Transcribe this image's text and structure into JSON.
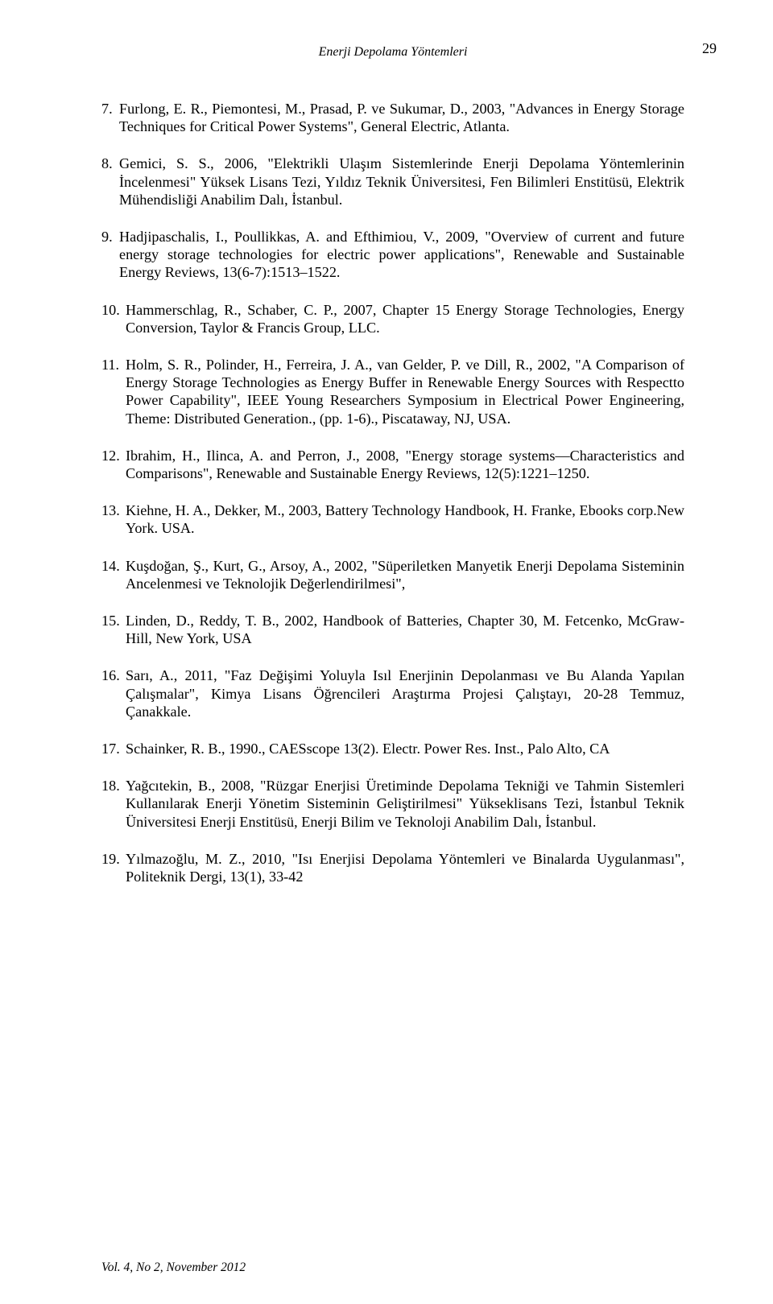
{
  "header": {
    "title": "Enerji Depolama Yöntemleri",
    "pageNumber": "29"
  },
  "refs": [
    {
      "num": "7.",
      "text": "Furlong, E. R., Piemontesi, M., Prasad, P. ve Sukumar, D., 2003, \"Advances in Energy Storage Techniques for Critical Power Systems\", General Electric, Atlanta."
    },
    {
      "num": "8.",
      "text": "Gemici, S. S., 2006, \"Elektrikli Ulaşım Sistemlerinde Enerji Depolama Yöntemlerinin İncelenmesi\" Yüksek Lisans Tezi, Yıldız Teknik Üniversitesi, Fen Bilimleri Enstitüsü, Elektrik Mühendisliği Anabilim Dalı, İstanbul."
    },
    {
      "num": "9.",
      "text": "Hadjipaschalis, I., Poullikkas, A. and Efthimiou, V., 2009, \"Overview of current and future energy storage technologies for electric power applications\", Renewable and Sustainable Energy Reviews, 13(6-7):1513–1522."
    },
    {
      "num": "10.",
      "text": "Hammerschlag, R., Schaber, C. P., 2007, Chapter 15 Energy Storage Technologies, Energy Conversion, Taylor & Francis Group, LLC."
    },
    {
      "num": "11.",
      "text": "Holm, S. R., Polinder, H., Ferreira, J. A., van Gelder, P. ve Dill, R., 2002, \"A Comparison of Energy Storage Technologies as Energy Buffer in Renewable Energy Sources with Respectto Power Capability\", IEEE Young Researchers Symposium in Electrical Power Engineering, Theme: Distributed Generation., (pp. 1-6).,  Piscataway, NJ, USA."
    },
    {
      "num": "12.",
      "text": "Ibrahim, H., Ilinca, A. and Perron, J., 2008, \"Energy storage systems—Characteristics and Comparisons\", Renewable and Sustainable Energy Reviews, 12(5):1221–1250."
    },
    {
      "num": "13.",
      "text": "Kiehne, H. A., Dekker, M., 2003, Battery Technology Handbook, H. Franke, Ebooks corp.New York. USA."
    },
    {
      "num": "14.",
      "text": "Kuşdoğan, Ş., Kurt, G., Arsoy, A., 2002, \"Süperiletken Manyetik Enerji Depolama Sisteminin Ancelenmesi ve Teknolojik Değerlendirilmesi\","
    },
    {
      "num": "15.",
      "text": "Linden, D., Reddy, T. B., 2002, Handbook of Batteries, Chapter 30, M. Fetcenko, McGraw-Hill, New York, USA"
    },
    {
      "num": "16.",
      "text": "Sarı, A., 2011, \"Faz Değişimi Yoluyla Isıl Enerjinin Depolanması ve Bu Alanda Yapılan Çalışmalar\", Kimya Lisans Öğrencileri Araştırma Projesi Çalıştayı, 20-28 Temmuz, Çanakkale."
    },
    {
      "num": "17.",
      "text": "Schainker, R. B., 1990., CAESscope 13(2). Electr. Power Res. Inst., Palo Alto, CA"
    },
    {
      "num": "18.",
      "text": "Yağcıtekin, B., 2008, \"Rüzgar Enerjisi Üretiminde Depolama Tekniği ve Tahmin Sistemleri Kullanılarak Enerji Yönetim Sisteminin Geliştirilmesi\" Yükseklisans Tezi, İstanbul Teknik Üniversitesi Enerji Enstitüsü, Enerji Bilim ve Teknoloji Anabilim Dalı, İstanbul."
    },
    {
      "num": "19.",
      "text": "Yılmazoğlu, M. Z., 2010, \"Isı Enerjisi Depolama Yöntemleri ve Binalarda Uygulanması\", Politeknik Dergi, 13(1), 33-42"
    }
  ],
  "footer": "Vol. 4, No 2, November 2012"
}
